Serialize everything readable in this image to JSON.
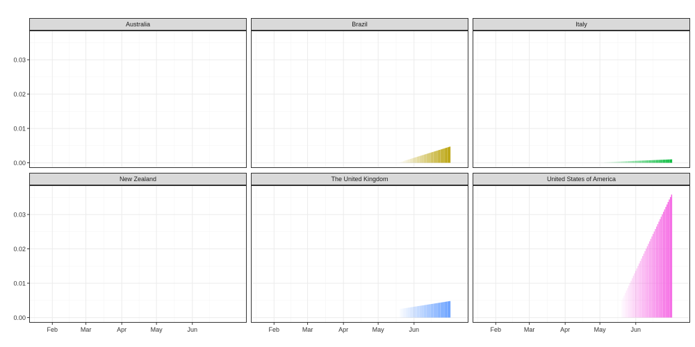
{
  "chart_data": {
    "type": "bar",
    "layout": "facet_wrap 2x3",
    "title": "",
    "xlabel": "",
    "ylabel": "",
    "ylim": [
      -0.0015,
      0.0385
    ],
    "y_ticks": [
      0.0,
      0.01,
      0.02,
      0.03
    ],
    "y_tick_labels": [
      "0.00",
      "0.01",
      "0.02",
      "0.03"
    ],
    "x_range": [
      "2020-01-12",
      "2020-07-18"
    ],
    "x_ticks": [
      "2020-02-01",
      "2020-03-01",
      "2020-04-01",
      "2020-05-01",
      "2020-06-01"
    ],
    "x_tick_labels": [
      "Feb",
      "Mar",
      "Apr",
      "May",
      "Jun"
    ],
    "grid": true,
    "legend": "none",
    "bar_fill_alpha": "increases with date",
    "series": [
      {
        "country": "Australia",
        "color": "#F8766D",
        "start": null,
        "end": null,
        "start_value": 0,
        "end_value": 0
      },
      {
        "country": "Brazil",
        "color": "#B79F00",
        "start": "2020-05-20",
        "end": "2020-07-02",
        "start_value": 0.0002,
        "end_value": 0.0047
      },
      {
        "country": "Italy",
        "color": "#00BA38",
        "start": "2020-05-05",
        "end": "2020-07-02",
        "start_value": 0.0002,
        "end_value": 0.001
      },
      {
        "country": "New Zealand",
        "color": "#00BFC4",
        "start": null,
        "end": null,
        "start_value": 0,
        "end_value": 0
      },
      {
        "country": "The United Kingdom",
        "color": "#619CFF",
        "start": "2020-05-20",
        "end": "2020-07-02",
        "start_value": 0.0025,
        "end_value": 0.0048
      },
      {
        "country": "United States of America",
        "color": "#F564E3",
        "start": "2020-05-20",
        "end": "2020-07-02",
        "start_value": 0.005,
        "end_value": 0.0358
      }
    ]
  },
  "colors": {
    "panel_border": "#333333",
    "strip_fill": "#d9d9d9",
    "grid_major": "#ebebeb",
    "grid_minor": "#f5f5f5"
  }
}
